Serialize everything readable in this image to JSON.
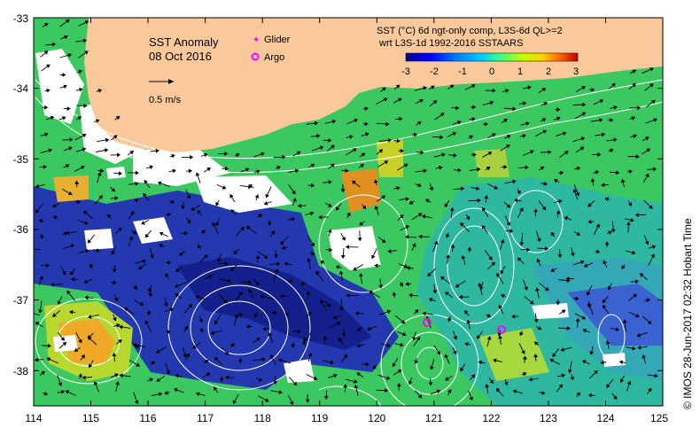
{
  "map": {
    "title": "SST Anomaly",
    "date": "08 Oct 2016",
    "velocity_scale_label": "0.5 m/s",
    "product_line1": "SST (°C) 6d ngt-only comp, L3S-6d QL>=2",
    "product_line2": "wrt L3S-1d 1992-2016 SSTAARS",
    "credit": "© IMOS 28-Jun-2017 02:32 Hobart Time",
    "legend": {
      "glider_label": "Glider",
      "argo_label": "Argo",
      "glider_color": "#ff00ff",
      "argo_color": "#ff00ff"
    },
    "colorbar": {
      "min": -3,
      "max": 3,
      "tick_labels": [
        "-3",
        "-2",
        "-1",
        "0",
        "1",
        "2",
        "3"
      ],
      "colors": [
        "#00008b",
        "#0000ff",
        "#0080ff",
        "#00d0ff",
        "#40ff80",
        "#c0ff00",
        "#ffd000",
        "#ff6000",
        "#c00000"
      ]
    },
    "x_axis": {
      "range": [
        114,
        125
      ],
      "tick_labels": [
        "114",
        "115",
        "116",
        "117",
        "118",
        "119",
        "120",
        "121",
        "122",
        "123",
        "124",
        "125"
      ]
    },
    "y_axis": {
      "range": [
        -38.5,
        -33
      ],
      "tick_labels": [
        "-33",
        "-34",
        "-35",
        "-36",
        "-37",
        "-38"
      ]
    },
    "colors": {
      "land": "#f9c99b",
      "no_data": "#ffffff",
      "deep_blue": "#1e2aa8",
      "mid_blue": "#2f6fd8",
      "teal": "#2fb7a8",
      "green": "#3fcf5f",
      "yellow_green": "#a8e040",
      "orange": "#f5a020",
      "contour": "#ffffff",
      "arrow": "#000000"
    },
    "observations": [
      {
        "type": "Argo",
        "lon": 120.9,
        "lat": -37.35
      },
      {
        "type": "Argo",
        "lon": 122.15,
        "lat": -37.45
      }
    ]
  }
}
